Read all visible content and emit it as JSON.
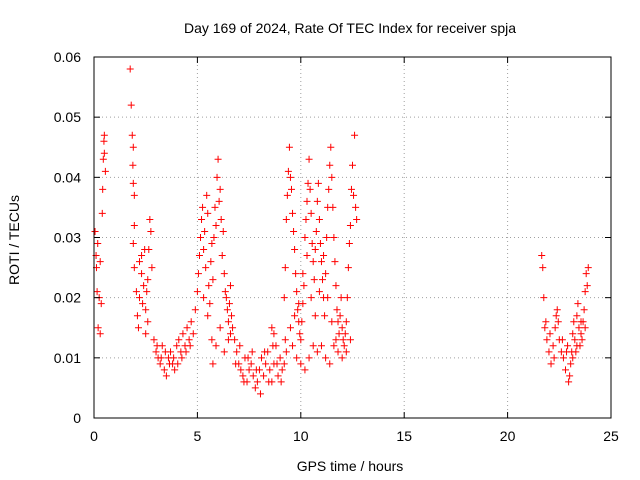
{
  "chart_data": {
    "type": "scatter",
    "title": "Day 169 of 2024, Rate Of TEC Index for receiver spja",
    "xlabel": "GPS time / hours",
    "ylabel": "ROTI / TECUs",
    "xlim": [
      0,
      25
    ],
    "ylim": [
      0,
      0.06
    ],
    "xticks": [
      0,
      5,
      10,
      15,
      20,
      25
    ],
    "xtick_labels": [
      "0",
      "5",
      "10",
      "15",
      "20",
      "25"
    ],
    "yticks": [
      0,
      0.01,
      0.02,
      0.03,
      0.04,
      0.05,
      0.06
    ],
    "ytick_labels": [
      "0",
      "0.01",
      "0.02",
      "0.03",
      "0.04",
      "0.05",
      "0.06"
    ],
    "grid": true,
    "marker": "+",
    "color": "#ff0000",
    "series": [
      {
        "name": "ROTI",
        "points": [
          [
            0.05,
            0.031
          ],
          [
            0.1,
            0.027
          ],
          [
            0.12,
            0.025
          ],
          [
            0.15,
            0.021
          ],
          [
            0.2,
            0.015
          ],
          [
            0.25,
            0.02
          ],
          [
            0.3,
            0.026
          ],
          [
            0.35,
            0.019
          ],
          [
            0.4,
            0.034
          ],
          [
            0.42,
            0.038
          ],
          [
            0.45,
            0.043
          ],
          [
            0.48,
            0.046
          ],
          [
            0.5,
            0.047
          ],
          [
            0.5,
            0.044
          ],
          [
            0.55,
            0.041
          ],
          [
            0.3,
            0.014
          ],
          [
            0.18,
            0.029
          ],
          [
            1.75,
            0.058
          ],
          [
            1.8,
            0.052
          ],
          [
            1.85,
            0.047
          ],
          [
            1.9,
            0.045
          ],
          [
            1.88,
            0.042
          ],
          [
            1.9,
            0.039
          ],
          [
            1.95,
            0.037
          ],
          [
            1.95,
            0.032
          ],
          [
            1.9,
            0.029
          ],
          [
            1.95,
            0.025
          ],
          [
            2.05,
            0.021
          ],
          [
            2.1,
            0.017
          ],
          [
            2.15,
            0.015
          ],
          [
            2.2,
            0.02
          ],
          [
            2.3,
            0.024
          ],
          [
            2.35,
            0.019
          ],
          [
            2.4,
            0.022
          ],
          [
            2.5,
            0.018
          ],
          [
            2.6,
            0.023
          ],
          [
            2.65,
            0.028
          ],
          [
            2.7,
            0.033
          ],
          [
            2.75,
            0.031
          ],
          [
            2.8,
            0.025
          ],
          [
            2.2,
            0.026
          ],
          [
            2.3,
            0.027
          ],
          [
            2.45,
            0.028
          ],
          [
            2.55,
            0.021
          ],
          [
            2.6,
            0.016
          ],
          [
            2.5,
            0.014
          ],
          [
            2.9,
            0.013
          ],
          [
            3.0,
            0.011
          ],
          [
            3.1,
            0.01
          ],
          [
            3.2,
            0.009
          ],
          [
            3.3,
            0.012
          ],
          [
            3.4,
            0.008
          ],
          [
            3.5,
            0.007
          ],
          [
            3.6,
            0.01
          ],
          [
            3.7,
            0.011
          ],
          [
            3.8,
            0.009
          ],
          [
            3.9,
            0.008
          ],
          [
            4.0,
            0.012
          ],
          [
            4.1,
            0.013
          ],
          [
            4.2,
            0.011
          ],
          [
            4.3,
            0.014
          ],
          [
            4.4,
            0.012
          ],
          [
            4.5,
            0.015
          ],
          [
            4.6,
            0.013
          ],
          [
            4.7,
            0.016
          ],
          [
            4.8,
            0.014
          ],
          [
            3.05,
            0.012
          ],
          [
            3.25,
            0.01
          ],
          [
            3.45,
            0.011
          ],
          [
            3.65,
            0.009
          ],
          [
            3.85,
            0.01
          ],
          [
            4.05,
            0.009
          ],
          [
            4.25,
            0.01
          ],
          [
            4.45,
            0.011
          ],
          [
            4.65,
            0.012
          ],
          [
            4.9,
            0.018
          ],
          [
            5.0,
            0.021
          ],
          [
            5.05,
            0.024
          ],
          [
            5.1,
            0.027
          ],
          [
            5.15,
            0.03
          ],
          [
            5.2,
            0.033
          ],
          [
            5.25,
            0.035
          ],
          [
            5.3,
            0.028
          ],
          [
            5.35,
            0.031
          ],
          [
            5.4,
            0.025
          ],
          [
            5.45,
            0.037
          ],
          [
            5.5,
            0.034
          ],
          [
            5.55,
            0.022
          ],
          [
            5.6,
            0.019
          ],
          [
            5.65,
            0.026
          ],
          [
            5.7,
            0.029
          ],
          [
            5.75,
            0.023
          ],
          [
            5.8,
            0.03
          ],
          [
            5.85,
            0.035
          ],
          [
            5.9,
            0.032
          ],
          [
            5.95,
            0.04
          ],
          [
            6.0,
            0.043
          ],
          [
            6.05,
            0.036
          ],
          [
            6.1,
            0.038
          ],
          [
            6.15,
            0.033
          ],
          [
            6.2,
            0.027
          ],
          [
            6.25,
            0.031
          ],
          [
            6.3,
            0.024
          ],
          [
            6.35,
            0.021
          ],
          [
            6.4,
            0.02
          ],
          [
            6.45,
            0.018
          ],
          [
            6.5,
            0.016
          ],
          [
            6.55,
            0.019
          ],
          [
            6.6,
            0.014
          ],
          [
            6.65,
            0.017
          ],
          [
            6.7,
            0.015
          ],
          [
            5.3,
            0.02
          ],
          [
            5.5,
            0.017
          ],
          [
            5.7,
            0.013
          ],
          [
            5.75,
            0.009
          ],
          [
            5.9,
            0.012
          ],
          [
            6.1,
            0.015
          ],
          [
            6.3,
            0.011
          ],
          [
            6.5,
            0.013
          ],
          [
            6.6,
            0.022
          ],
          [
            6.8,
            0.013
          ],
          [
            6.9,
            0.011
          ],
          [
            7.0,
            0.009
          ],
          [
            7.1,
            0.008
          ],
          [
            7.2,
            0.007
          ],
          [
            7.3,
            0.01
          ],
          [
            7.4,
            0.006
          ],
          [
            7.5,
            0.008
          ],
          [
            7.6,
            0.009
          ],
          [
            7.7,
            0.007
          ],
          [
            7.8,
            0.005
          ],
          [
            7.9,
            0.006
          ],
          [
            8.0,
            0.008
          ],
          [
            8.1,
            0.01
          ],
          [
            8.2,
            0.007
          ],
          [
            8.3,
            0.009
          ],
          [
            8.4,
            0.011
          ],
          [
            8.5,
            0.008
          ],
          [
            8.6,
            0.006
          ],
          [
            8.7,
            0.009
          ],
          [
            8.8,
            0.012
          ],
          [
            8.9,
            0.007
          ],
          [
            9.0,
            0.01
          ],
          [
            9.1,
            0.008
          ],
          [
            9.2,
            0.009
          ],
          [
            9.3,
            0.011
          ],
          [
            6.85,
            0.009
          ],
          [
            7.05,
            0.012
          ],
          [
            7.25,
            0.006
          ],
          [
            7.45,
            0.01
          ],
          [
            7.65,
            0.011
          ],
          [
            7.85,
            0.008
          ],
          [
            8.05,
            0.004
          ],
          [
            8.25,
            0.011
          ],
          [
            8.45,
            0.006
          ],
          [
            8.65,
            0.012
          ],
          [
            8.85,
            0.009
          ],
          [
            9.05,
            0.006
          ],
          [
            9.25,
            0.013
          ],
          [
            8.6,
            0.015
          ],
          [
            8.7,
            0.014
          ],
          [
            9.2,
            0.02
          ],
          [
            9.25,
            0.025
          ],
          [
            9.3,
            0.033
          ],
          [
            9.35,
            0.037
          ],
          [
            9.4,
            0.041
          ],
          [
            9.45,
            0.045
          ],
          [
            9.5,
            0.04
          ],
          [
            9.55,
            0.038
          ],
          [
            9.6,
            0.034
          ],
          [
            9.65,
            0.031
          ],
          [
            9.7,
            0.028
          ],
          [
            9.75,
            0.024
          ],
          [
            9.8,
            0.021
          ],
          [
            9.85,
            0.018
          ],
          [
            9.9,
            0.016
          ],
          [
            9.95,
            0.014
          ],
          [
            10.0,
            0.013
          ],
          [
            10.05,
            0.016
          ],
          [
            10.1,
            0.019
          ],
          [
            10.15,
            0.022
          ],
          [
            10.2,
            0.03
          ],
          [
            10.25,
            0.033
          ],
          [
            10.3,
            0.036
          ],
          [
            10.35,
            0.039
          ],
          [
            10.4,
            0.043
          ],
          [
            10.45,
            0.038
          ],
          [
            10.5,
            0.034
          ],
          [
            10.55,
            0.029
          ],
          [
            10.6,
            0.026
          ],
          [
            10.65,
            0.023
          ],
          [
            10.7,
            0.028
          ],
          [
            10.75,
            0.031
          ],
          [
            10.8,
            0.036
          ],
          [
            10.85,
            0.039
          ],
          [
            10.9,
            0.033
          ],
          [
            10.95,
            0.029
          ],
          [
            11.0,
            0.026
          ],
          [
            11.05,
            0.023
          ],
          [
            11.1,
            0.02
          ],
          [
            11.15,
            0.017
          ],
          [
            11.2,
            0.024
          ],
          [
            11.25,
            0.03
          ],
          [
            11.3,
            0.035
          ],
          [
            11.35,
            0.038
          ],
          [
            11.4,
            0.042
          ],
          [
            11.45,
            0.045
          ],
          [
            11.5,
            0.04
          ],
          [
            11.55,
            0.035
          ],
          [
            11.6,
            0.03
          ],
          [
            11.65,
            0.026
          ],
          [
            11.7,
            0.022
          ],
          [
            11.75,
            0.018
          ],
          [
            11.8,
            0.016
          ],
          [
            11.85,
            0.014
          ],
          [
            11.9,
            0.017
          ],
          [
            11.95,
            0.02
          ],
          [
            12.0,
            0.015
          ],
          [
            12.05,
            0.013
          ],
          [
            12.1,
            0.012
          ],
          [
            12.15,
            0.014
          ],
          [
            12.2,
            0.016
          ],
          [
            12.25,
            0.02
          ],
          [
            12.3,
            0.025
          ],
          [
            12.35,
            0.029
          ],
          [
            12.4,
            0.032
          ],
          [
            12.45,
            0.038
          ],
          [
            12.5,
            0.042
          ],
          [
            12.55,
            0.037
          ],
          [
            12.6,
            0.047
          ],
          [
            12.65,
            0.035
          ],
          [
            12.7,
            0.033
          ],
          [
            9.6,
            0.012
          ],
          [
            9.8,
            0.01
          ],
          [
            10.0,
            0.009
          ],
          [
            10.2,
            0.008
          ],
          [
            10.4,
            0.01
          ],
          [
            10.6,
            0.012
          ],
          [
            10.8,
            0.011
          ],
          [
            11.0,
            0.012
          ],
          [
            11.2,
            0.01
          ],
          [
            11.4,
            0.009
          ],
          [
            11.6,
            0.012
          ],
          [
            11.8,
            0.011
          ],
          [
            12.0,
            0.01
          ],
          [
            12.2,
            0.011
          ],
          [
            12.4,
            0.013
          ],
          [
            9.5,
            0.015
          ],
          [
            9.7,
            0.017
          ],
          [
            9.9,
            0.019
          ],
          [
            10.1,
            0.024
          ],
          [
            10.3,
            0.027
          ],
          [
            10.5,
            0.02
          ],
          [
            10.7,
            0.017
          ],
          [
            10.9,
            0.021
          ],
          [
            11.1,
            0.027
          ],
          [
            11.3,
            0.02
          ],
          [
            11.5,
            0.016
          ],
          [
            11.7,
            0.013
          ],
          [
            21.65,
            0.027
          ],
          [
            21.7,
            0.025
          ],
          [
            21.75,
            0.02
          ],
          [
            21.8,
            0.015
          ],
          [
            21.9,
            0.013
          ],
          [
            22.0,
            0.011
          ],
          [
            22.1,
            0.009
          ],
          [
            22.2,
            0.012
          ],
          [
            22.3,
            0.015
          ],
          [
            22.35,
            0.017
          ],
          [
            22.4,
            0.018
          ],
          [
            22.5,
            0.013
          ],
          [
            22.6,
            0.011
          ],
          [
            22.7,
            0.01
          ],
          [
            22.8,
            0.008
          ],
          [
            22.9,
            0.012
          ],
          [
            23.0,
            0.007
          ],
          [
            23.05,
            0.009
          ],
          [
            23.1,
            0.011
          ],
          [
            23.15,
            0.014
          ],
          [
            23.2,
            0.016
          ],
          [
            23.25,
            0.013
          ],
          [
            23.3,
            0.011
          ],
          [
            23.35,
            0.017
          ],
          [
            23.4,
            0.019
          ],
          [
            23.45,
            0.015
          ],
          [
            23.5,
            0.012
          ],
          [
            23.55,
            0.014
          ],
          [
            23.6,
            0.013
          ],
          [
            23.65,
            0.016
          ],
          [
            23.7,
            0.018
          ],
          [
            23.75,
            0.021
          ],
          [
            23.8,
            0.024
          ],
          [
            23.85,
            0.022
          ],
          [
            23.9,
            0.025
          ],
          [
            21.85,
            0.016
          ],
          [
            22.05,
            0.014
          ],
          [
            22.25,
            0.01
          ],
          [
            22.45,
            0.016
          ],
          [
            22.65,
            0.013
          ],
          [
            22.85,
            0.011
          ],
          [
            22.95,
            0.006
          ],
          [
            23.15,
            0.01
          ],
          [
            23.35,
            0.012
          ],
          [
            23.55,
            0.016
          ],
          [
            23.75,
            0.015
          ]
        ]
      }
    ]
  }
}
